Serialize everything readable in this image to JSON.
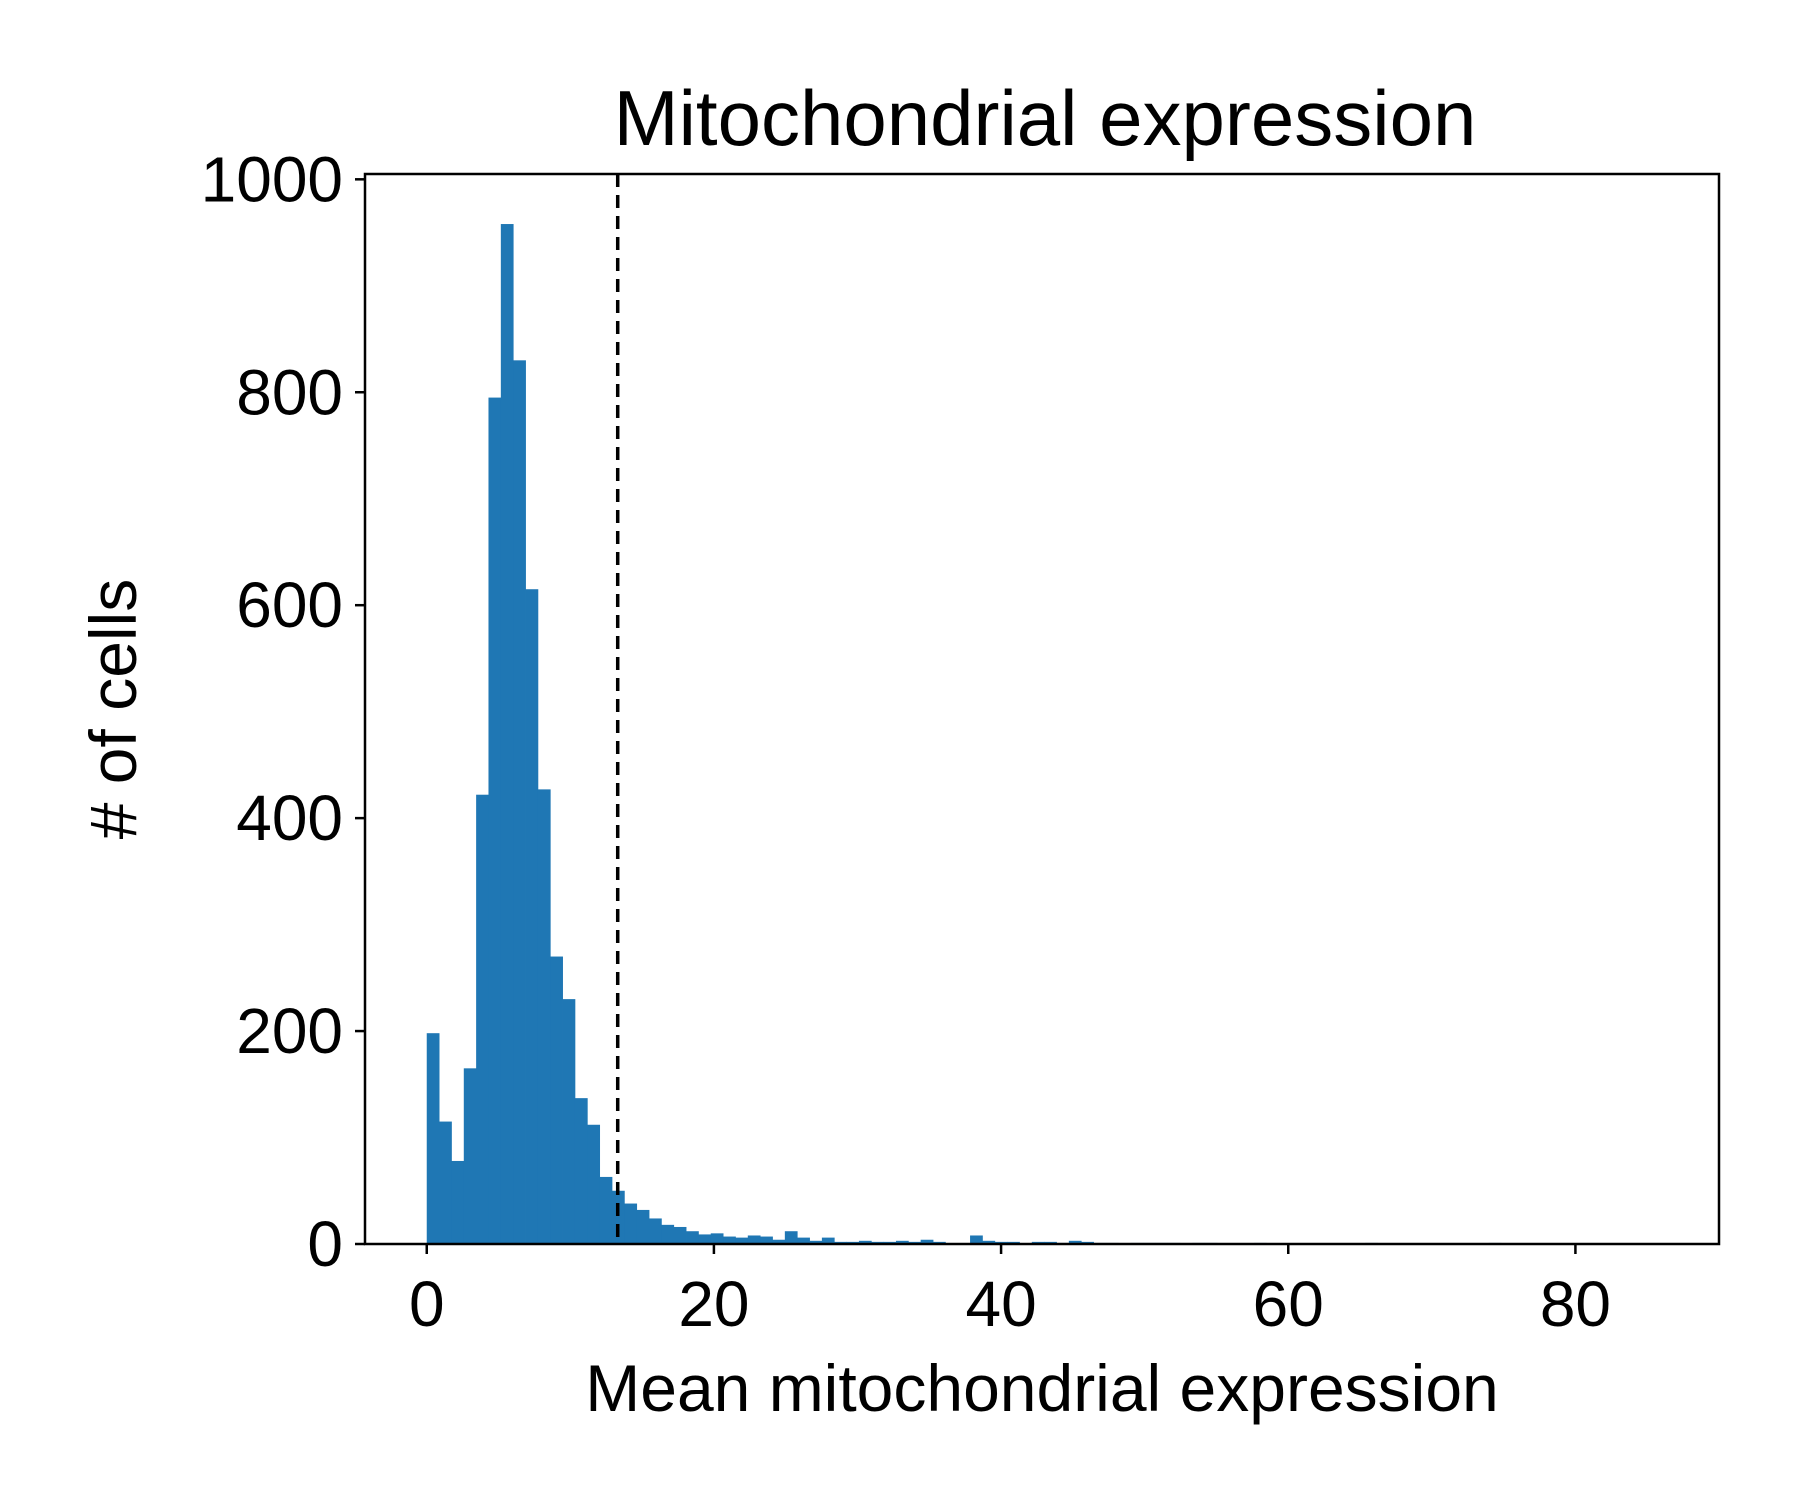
{
  "chart_data": {
    "type": "bar",
    "title": "Mitochondrial expression",
    "xlabel": "Mean mitochondrial expression",
    "ylabel": "# of cells",
    "xlim": [
      -4.3,
      90
    ],
    "ylim": [
      0,
      1005
    ],
    "xticks": [
      0,
      20,
      40,
      60,
      80
    ],
    "yticks": [
      0,
      200,
      400,
      600,
      800,
      1000
    ],
    "bar_color": "#1f77b4",
    "bins": {
      "start": 0,
      "width": 0.86,
      "counts": [
        198,
        115,
        78,
        165,
        422,
        795,
        958,
        830,
        615,
        427,
        270,
        230,
        137,
        112,
        63,
        50,
        38,
        32,
        24,
        18,
        16,
        12,
        9,
        10,
        7,
        6,
        8,
        7,
        4,
        12,
        6,
        3,
        6,
        2,
        2,
        3,
        2,
        2,
        3,
        2,
        4,
        2,
        0,
        0,
        8,
        3,
        2,
        2,
        0,
        2,
        2,
        1,
        3,
        2,
        1,
        1,
        0,
        1,
        1,
        1,
        1,
        0,
        1,
        1,
        0,
        0,
        0,
        1,
        0,
        0,
        0,
        0,
        0,
        0,
        0,
        0,
        1,
        0,
        0,
        0,
        0,
        0,
        0,
        0,
        0,
        0,
        1,
        0,
        0,
        0,
        0,
        0,
        0,
        0,
        0,
        0,
        0,
        0,
        0,
        0
      ]
    },
    "threshold": {
      "x": 13.3,
      "style": "dashed",
      "color": "#000000"
    },
    "grid": false,
    "legend": "none"
  }
}
